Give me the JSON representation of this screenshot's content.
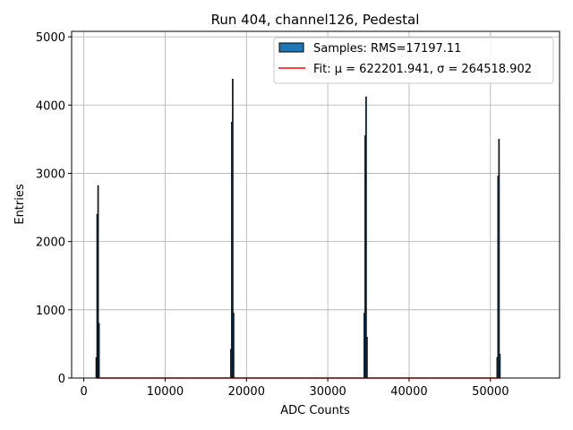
{
  "chart_data": {
    "type": "bar",
    "title": "Run 404, channel126, Pedestal",
    "xlabel": "ADC Counts",
    "ylabel": "Entries",
    "xlim": [
      -1500,
      58500
    ],
    "ylim": [
      0,
      5080
    ],
    "xticks": [
      0,
      10000,
      20000,
      30000,
      40000,
      50000
    ],
    "yticks": [
      0,
      1000,
      2000,
      3000,
      4000,
      5000
    ],
    "grid": true,
    "legend_position": "top-right",
    "series": [
      {
        "name": "Samples: RMS=17197.11",
        "kind": "histogram",
        "color": "#1f77b4",
        "bins": [
          {
            "x": 1700,
            "values": [
              300,
              2400,
              2820,
              800
            ]
          },
          {
            "x": 18250,
            "values": [
              420,
              3750,
              4380,
              950
            ]
          },
          {
            "x": 34650,
            "values": [
              950,
              3550,
              4120,
              600
            ]
          },
          {
            "x": 51000,
            "values": [
              300,
              2960,
              3500,
              350
            ]
          }
        ]
      },
      {
        "name": "Fit: μ = 622201.941, σ = 264518.902",
        "kind": "line",
        "color": "#ff0000",
        "x": [
          1600,
          51200
        ],
        "y": [
          0,
          0
        ]
      }
    ]
  }
}
